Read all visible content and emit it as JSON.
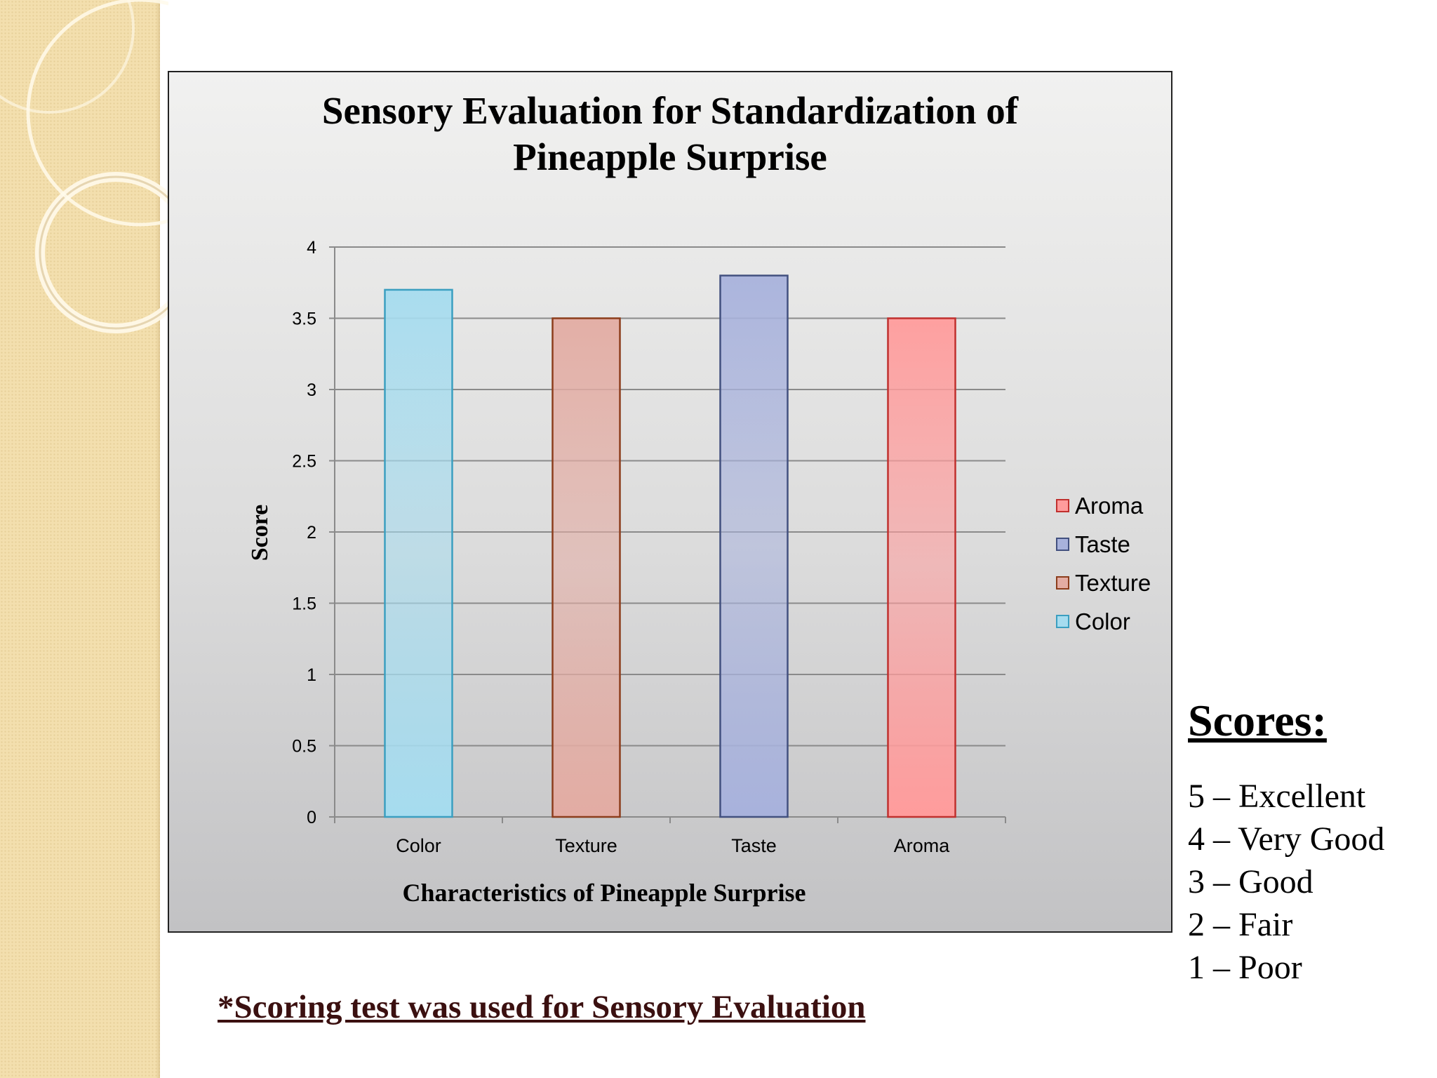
{
  "chart_data": {
    "type": "bar",
    "title": [
      "Sensory Evaluation for Standardization of",
      "Pineapple Surprise"
    ],
    "xlabel": "Characteristics of Pineapple Surprise",
    "ylabel": "Score",
    "categories": [
      "Color",
      "Texture",
      "Taste",
      "Aroma"
    ],
    "values": [
      3.7,
      3.5,
      3.8,
      3.5
    ],
    "colors": [
      "#a6dcef",
      "#e3aca3",
      "#a8b2dc",
      "#ff9c9c"
    ],
    "border_colors": [
      "#3b9fc0",
      "#8c3d1c",
      "#42507f",
      "#c0302e"
    ],
    "ylim": [
      0,
      4
    ],
    "yticks": [
      "0",
      "0.5",
      "1",
      "1.5",
      "2",
      "2.5",
      "3",
      "3.5",
      "4"
    ],
    "grid": true,
    "legend_position": "right",
    "legend": [
      {
        "name": "Aroma",
        "color": "#ff9c9c",
        "border": "#c0302e"
      },
      {
        "name": "Taste",
        "color": "#a8b2dc",
        "border": "#42507f"
      },
      {
        "name": "Texture",
        "color": "#e3aca3",
        "border": "#8c3d1c"
      },
      {
        "name": "Color",
        "color": "#a6dcef",
        "border": "#3b9fc0"
      }
    ]
  },
  "scores": {
    "heading": "Scores:",
    "items": [
      "5 – Excellent",
      "4 – Very Good",
      "3 – Good",
      "2 – Fair",
      "1 – Poor"
    ]
  },
  "footnote": "*Scoring test was used for Sensory Evaluation"
}
